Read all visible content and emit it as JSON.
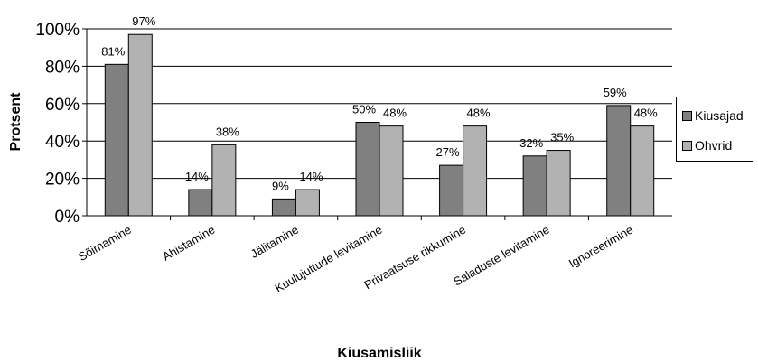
{
  "chart_data": {
    "type": "bar",
    "categories": [
      "Sõimamine",
      "Ahistamine",
      "Jälitamine",
      "Kuulujuttude levitamine",
      "Privaatsuse rikkumine",
      "Saladuste levitamine",
      "Ignoreerimine"
    ],
    "series": [
      {
        "name": "Kiusajad",
        "values": [
          81,
          14,
          9,
          50,
          27,
          32,
          59
        ],
        "labels": [
          "81%",
          "14%",
          "9%",
          "50%",
          "27%",
          "32%",
          "59%"
        ],
        "color": "#808080"
      },
      {
        "name": "Ohvrid",
        "values": [
          97,
          38,
          14,
          48,
          48,
          35,
          48
        ],
        "labels": [
          "97%",
          "38%",
          "14%",
          "48%",
          "48%",
          "35%",
          "48%"
        ],
        "color": "#b2b2b2"
      }
    ],
    "yticks": [
      "0%",
      "20%",
      "40%",
      "60%",
      "80%",
      "100%"
    ],
    "ylim": [
      0,
      100
    ],
    "xlabel": "Kiusamisliik",
    "ylabel": "Protsent",
    "grid": true,
    "legend_position": "right"
  }
}
